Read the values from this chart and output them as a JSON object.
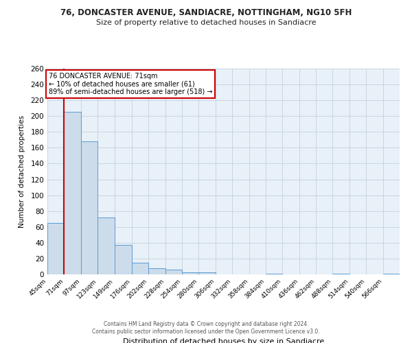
{
  "title": "76, DONCASTER AVENUE, SANDIACRE, NOTTINGHAM, NG10 5FH",
  "subtitle": "Size of property relative to detached houses in Sandiacre",
  "bar_heights": [
    65,
    205,
    168,
    72,
    37,
    15,
    8,
    6,
    3,
    3,
    0,
    0,
    0,
    1,
    0,
    0,
    0,
    1,
    0,
    0,
    1
  ],
  "bin_labels": [
    "45sqm",
    "71sqm",
    "97sqm",
    "123sqm",
    "149sqm",
    "176sqm",
    "202sqm",
    "228sqm",
    "254sqm",
    "280sqm",
    "306sqm",
    "332sqm",
    "358sqm",
    "384sqm",
    "410sqm",
    "436sqm",
    "462sqm",
    "488sqm",
    "514sqm",
    "540sqm",
    "566sqm"
  ],
  "bin_edges": [
    45,
    71,
    97,
    123,
    149,
    176,
    202,
    228,
    254,
    280,
    306,
    332,
    358,
    384,
    410,
    436,
    462,
    488,
    514,
    540,
    566,
    592
  ],
  "bar_color": "#ccdcea",
  "bar_edge_color": "#5b9bd5",
  "red_line_x": 71,
  "ylim": [
    0,
    260
  ],
  "yticks": [
    0,
    20,
    40,
    60,
    80,
    100,
    120,
    140,
    160,
    180,
    200,
    220,
    240,
    260
  ],
  "ylabel": "Number of detached properties",
  "xlabel": "Distribution of detached houses by size in Sandiacre",
  "annotation_title": "76 DONCASTER AVENUE: 71sqm",
  "annotation_line1": "← 10% of detached houses are smaller (61)",
  "annotation_line2": "89% of semi-detached houses are larger (518) →",
  "annotation_box_facecolor": "#ffffff",
  "annotation_box_edgecolor": "#cc0000",
  "footer_line1": "Contains HM Land Registry data © Crown copyright and database right 2024.",
  "footer_line2": "Contains public sector information licensed under the Open Government Licence v3.0.",
  "background_color": "#ffffff",
  "plot_bg_color": "#e8f0f8",
  "grid_color": "#c0ccd8"
}
